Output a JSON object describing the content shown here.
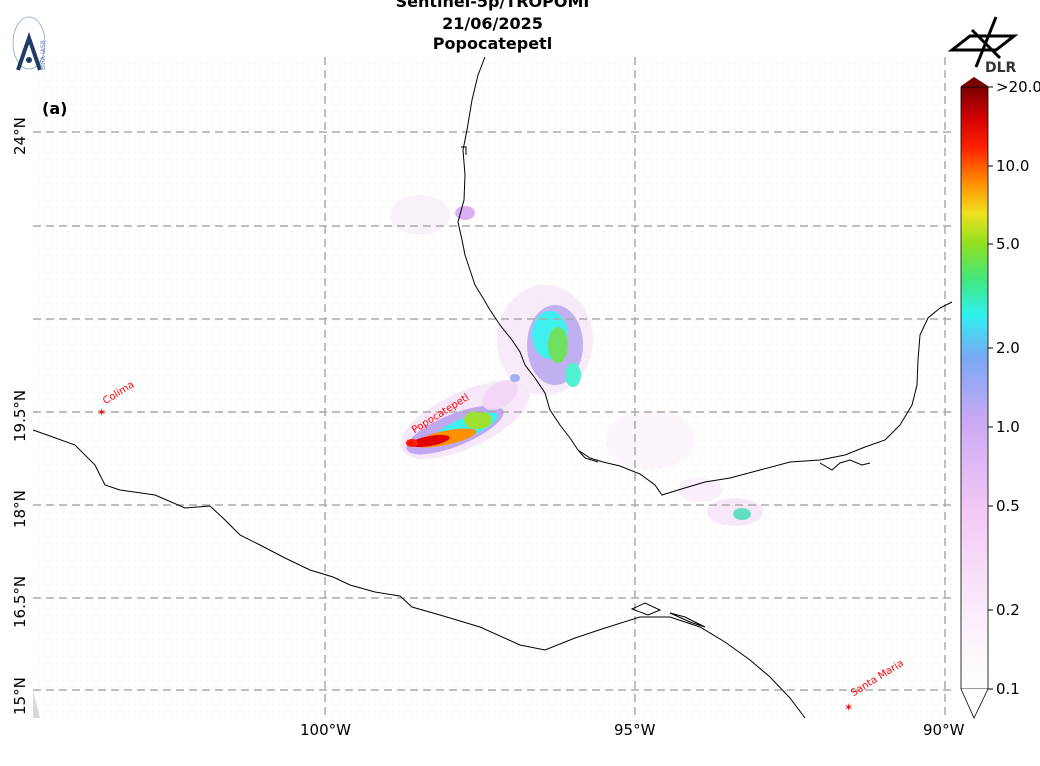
{
  "header": {
    "line1": "Sentinel-5p/TROPOMI",
    "line2": "21/06/2025",
    "line3": "Popocatepetl"
  },
  "panel_label": "(a)",
  "logos": {
    "right_text": "DLR",
    "left_text": "BIRA-IASB"
  },
  "lat_ticks": [
    {
      "label": "24°N",
      "value": 24.0
    },
    {
      "label": "19.5°N",
      "value": 19.5
    },
    {
      "label": "18°N",
      "value": 18.0
    },
    {
      "label": "16.5°N",
      "value": 16.5
    },
    {
      "label": "15°N",
      "value": 15.0
    }
  ],
  "lon_ticks": [
    {
      "label": "100°W",
      "value": -100
    },
    {
      "label": "95°W",
      "value": -95
    },
    {
      "label": "90°W",
      "value": -90
    }
  ],
  "volcanoes": [
    {
      "name": "Colima",
      "lon": -103.6,
      "lat": 19.5
    },
    {
      "name": "Popocatepetl",
      "lon": -98.6,
      "lat": 19.0
    },
    {
      "name": "Santa Maria",
      "lon": -91.6,
      "lat": 14.7
    }
  ],
  "colorbar": {
    "ticks": [
      ">20.0",
      "10.0",
      "5.0",
      "2.0",
      "1.0",
      "0.5",
      "0.2",
      "0.1"
    ],
    "colors": [
      "#ffffff",
      "#f6d8f6",
      "#e0b0f0",
      "#a898f0",
      "#30f0f0",
      "#60e060",
      "#a0e020",
      "#f0e020",
      "#ff9000",
      "#ff2000",
      "#d00000",
      "#7a0000"
    ]
  },
  "colors": {
    "volcano_marker": "#ff0000",
    "grid": "#aaaaaa",
    "coast": "#000000"
  }
}
